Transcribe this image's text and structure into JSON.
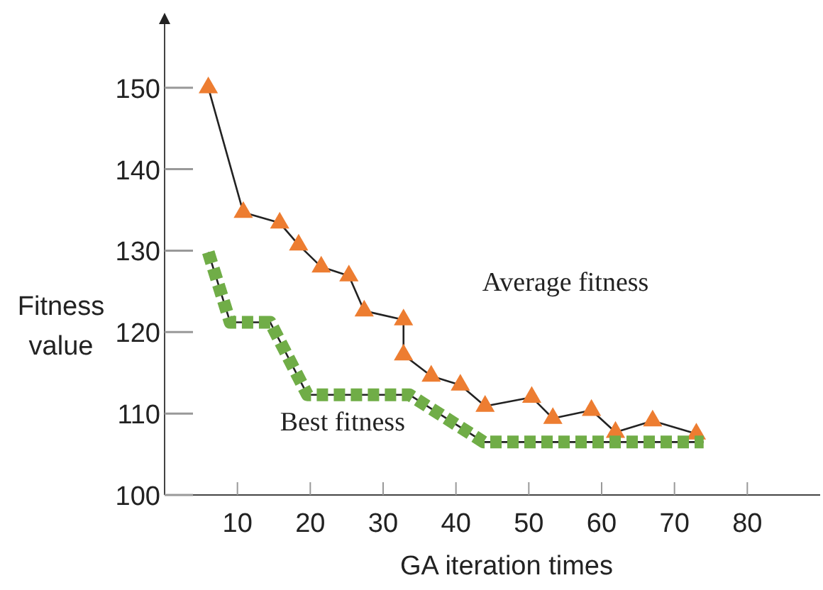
{
  "chart_data": {
    "type": "line",
    "xlabel": "GA iteration times",
    "ylabel": "Fitness value",
    "xlim": [
      0,
      90
    ],
    "xticks": [
      10,
      20,
      30,
      40,
      50,
      60,
      70,
      80
    ],
    "ylim": [
      100,
      158.5
    ],
    "yticks": [
      100,
      110,
      120,
      130,
      140,
      150
    ],
    "grid": false,
    "legend": false,
    "series": [
      {
        "name": "Average fitness",
        "color": "#ed7d31",
        "marker": "triangle",
        "line_style": "solid",
        "x": [
          6,
          10.8,
          15.8,
          18.4,
          21.5,
          25.3,
          27.4,
          32.8,
          32.8,
          36.6,
          40.6,
          44,
          50.4,
          53.3,
          58.6,
          61.9,
          67,
          73
        ],
        "values": [
          150,
          134.7,
          133.4,
          130.7,
          128,
          126.9,
          122.6,
          121.5,
          117.2,
          114.6,
          113.5,
          110.9,
          112,
          109.4,
          110.4,
          107.7,
          109.1,
          107.5
        ]
      },
      {
        "name": "Best fitness",
        "color": "#70ad47",
        "marker": "none",
        "line_style": "dashed",
        "x": [
          6,
          9,
          14.5,
          19.6,
          33.6,
          43.8,
          74
        ],
        "values": [
          129.8,
          121.2,
          121.2,
          112.3,
          112.3,
          106.5,
          106.5
        ]
      }
    ]
  }
}
